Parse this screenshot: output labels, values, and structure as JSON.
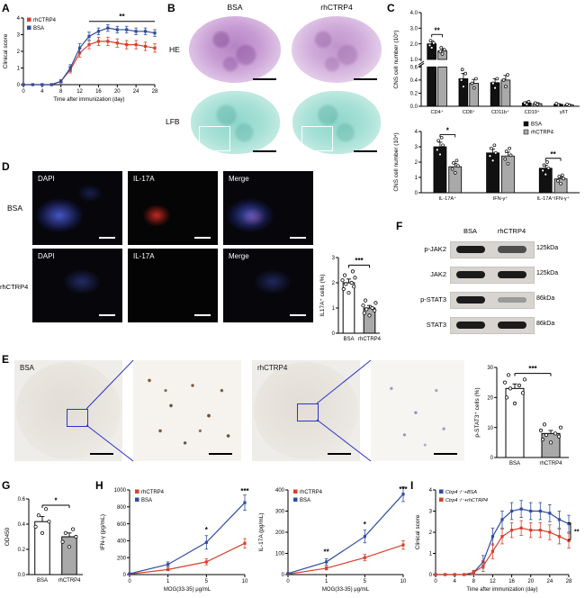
{
  "colors": {
    "red": "#d8402a",
    "blue": "#2f4da0",
    "black": "#111111",
    "gray": "#a9a9a9"
  },
  "panels": {
    "A": {
      "letter": "A"
    },
    "B": {
      "letter": "B",
      "col_labels": [
        "BSA",
        "rhCTRP4"
      ],
      "row_labels": [
        "HE",
        "LFB"
      ]
    },
    "C": {
      "letter": "C"
    },
    "D": {
      "letter": "D",
      "row_labels": [
        "BSA",
        "rhCTRP4"
      ],
      "col_labels": [
        "DAPI",
        "IL-17A",
        "Merge"
      ]
    },
    "E": {
      "letter": "E",
      "image_labels": [
        "BSA",
        "rhCTRP4"
      ]
    },
    "F": {
      "letter": "F",
      "col_labels": [
        "BSA",
        "rhCTRP4"
      ],
      "rows": [
        {
          "name": "p-JAK2",
          "kda": "125kDa"
        },
        {
          "name": "JAK2",
          "kda": "125kDa"
        },
        {
          "name": "p-STAT3",
          "kda": "86kDa"
        },
        {
          "name": "STAT3",
          "kda": "86kDa"
        }
      ]
    },
    "G": {
      "letter": "G"
    },
    "H": {
      "letter": "H"
    },
    "I": {
      "letter": "I"
    }
  },
  "chart_data": [
    {
      "id": "A",
      "type": "line",
      "xlabel": "Time after immunization (day)",
      "ylabel": "Clinical score",
      "x": [
        0,
        2,
        4,
        6,
        8,
        10,
        12,
        14,
        16,
        18,
        20,
        22,
        24,
        26,
        28
      ],
      "xticks": [
        0,
        4,
        8,
        12,
        16,
        20,
        24,
        28
      ],
      "xlim": [
        0,
        28
      ],
      "ylim": [
        0,
        4
      ],
      "yticks": [
        0,
        1,
        2,
        3,
        4
      ],
      "ytick_labels": [
        "0",
        "1",
        "2",
        "3",
        "4"
      ],
      "series": [
        {
          "name": "rhCTRP4",
          "color": "#d8402a",
          "y": [
            0,
            0,
            0,
            0,
            0.2,
            0.9,
            1.9,
            2.4,
            2.6,
            2.6,
            2.5,
            2.4,
            2.4,
            2.3,
            2.2
          ],
          "err": [
            0,
            0,
            0,
            0,
            0.1,
            0.2,
            0.25,
            0.25,
            0.25,
            0.25,
            0.25,
            0.25,
            0.25,
            0.25,
            0.25
          ]
        },
        {
          "name": "BSA",
          "color": "#2f4da0",
          "y": [
            0,
            0,
            0,
            0,
            0.2,
            1.0,
            2.2,
            2.9,
            3.2,
            3.4,
            3.3,
            3.3,
            3.2,
            3.2,
            3.1
          ],
          "err": [
            0,
            0,
            0,
            0,
            0.1,
            0.2,
            0.25,
            0.25,
            0.2,
            0.2,
            0.2,
            0.2,
            0.2,
            0.2,
            0.2
          ]
        }
      ],
      "sig": [
        {
          "type": "hline",
          "x1": 14,
          "x2": 28,
          "y": 3.8,
          "label": "**"
        }
      ]
    },
    {
      "id": "Ctop",
      "type": "group_bar",
      "broken": true,
      "ylabel": "CNS cell number (10⁵)",
      "categories": [
        "CD4⁺",
        "CD8⁺",
        "CD11b⁺",
        "CD19⁺",
        "γδT"
      ],
      "seg_top": {
        "lim": [
          1,
          4
        ],
        "ticks": [
          1,
          2,
          3,
          4
        ],
        "labels": [
          "1.0",
          "2.0",
          "3.0",
          "4.0"
        ]
      },
      "seg_bot": {
        "lim": [
          0,
          0.6
        ],
        "ticks": [
          0,
          0.2,
          0.4,
          0.6
        ],
        "labels": [
          "0.0",
          "0.2",
          "0.4",
          "0.6"
        ]
      },
      "series": [
        {
          "name": "BSA",
          "color": "#111111",
          "values": [
            2.0,
            0.42,
            0.36,
            0.05,
            0.03
          ],
          "err": [
            0.2,
            0.08,
            0.06,
            0.02,
            0.01
          ],
          "dots": [
            [
              1.75,
              1.9,
              2.05,
              2.2
            ],
            [
              0.3,
              0.4,
              0.5,
              0.56
            ],
            [
              0.28,
              0.35,
              0.42
            ],
            [
              0.03,
              0.05,
              0.07
            ],
            [
              0.02,
              0.04
            ]
          ]
        },
        {
          "name": "rhCTRP4",
          "color": "#a9a9a9",
          "values": [
            1.55,
            0.35,
            0.4,
            0.04,
            0.02
          ],
          "err": [
            0.15,
            0.06,
            0.07,
            0.015,
            0.01
          ],
          "dots": [
            [
              1.35,
              1.5,
              1.62,
              1.75
            ],
            [
              0.28,
              0.35,
              0.42
            ],
            [
              0.3,
              0.4,
              0.48
            ],
            [
              0.03,
              0.05
            ],
            [
              0.015,
              0.03
            ]
          ]
        }
      ],
      "sig": [
        {
          "ci": 0,
          "y": 2.6,
          "label": "**"
        }
      ]
    },
    {
      "id": "Cbot",
      "type": "group_bar",
      "ylabel": "CNS cell number (10⁴)",
      "categories": [
        "IL-17A⁺",
        "IFN-γ⁺",
        "IL-17A⁺IFN-γ⁺"
      ],
      "ylim": [
        0,
        4
      ],
      "yticks": [
        0,
        1,
        2,
        3,
        4
      ],
      "ytick_labels": [
        "0",
        "1",
        "2",
        "3",
        "4"
      ],
      "legend": true,
      "series": [
        {
          "name": "BSA",
          "color": "#111111",
          "values": [
            3.0,
            2.6,
            1.6
          ],
          "err": [
            0.3,
            0.25,
            0.2
          ],
          "dots": [
            [
              2.5,
              2.8,
              3.1,
              3.4,
              3.6
            ],
            [
              2.1,
              2.4,
              2.6,
              2.9,
              3.1
            ],
            [
              1.2,
              1.45,
              1.6,
              1.8,
              2.0
            ]
          ]
        },
        {
          "name": "rhCTRP4",
          "color": "#a9a9a9",
          "values": [
            1.7,
            2.4,
            0.9
          ],
          "err": [
            0.2,
            0.25,
            0.12
          ],
          "dots": [
            [
              1.3,
              1.55,
              1.75,
              1.95,
              2.1
            ],
            [
              1.9,
              2.2,
              2.45,
              2.7,
              2.9
            ],
            [
              0.6,
              0.78,
              0.92,
              1.05,
              1.15
            ]
          ]
        }
      ],
      "sig": [
        {
          "ci": 0,
          "y": 3.8,
          "label": "*"
        },
        {
          "ci": 2,
          "y": 2.25,
          "label": "**"
        }
      ]
    },
    {
      "id": "Dbar",
      "type": "bar",
      "ylabel": "IL17A⁺ cells (%)",
      "ylim": [
        0,
        3
      ],
      "yticks": [
        0,
        1,
        2,
        3
      ],
      "ytick_labels": [
        "0",
        "1",
        "2",
        "3"
      ],
      "bars": [
        {
          "label": "BSA",
          "value": 2.0,
          "err": 0.15,
          "fill": "#ffffff",
          "dots": [
            1.6,
            1.75,
            1.85,
            1.95,
            2.0,
            2.1,
            2.2,
            2.3,
            2.45
          ]
        },
        {
          "label": "rhCTRP4",
          "value": 1.0,
          "err": 0.1,
          "fill": "#a9a9a9",
          "dots": [
            0.7,
            0.8,
            0.9,
            0.95,
            1.0,
            1.1,
            1.2,
            1.3
          ]
        }
      ],
      "sig": [
        {
          "i1": 0,
          "i2": 1,
          "y": 2.7,
          "label": "***"
        }
      ]
    },
    {
      "id": "Ebar",
      "type": "bar",
      "ylabel": "p-STAT3⁺ cells (%)",
      "ylim": [
        0,
        30
      ],
      "yticks": [
        0,
        10,
        20,
        30
      ],
      "ytick_labels": [
        "0",
        "10",
        "20",
        "30"
      ],
      "bars": [
        {
          "label": "BSA",
          "value": 23,
          "err": 1.5,
          "fill": "#ffffff",
          "dots": [
            18,
            20,
            21.5,
            23,
            24,
            25,
            26,
            27.5
          ]
        },
        {
          "label": "rhCTRP4",
          "value": 8,
          "err": 1,
          "fill": "#a9a9a9",
          "dots": [
            5,
            6,
            7,
            7.5,
            8,
            9,
            10,
            11
          ]
        }
      ],
      "sig": [
        {
          "i1": 0,
          "i2": 1,
          "y": 28,
          "label": "***"
        }
      ]
    },
    {
      "id": "G",
      "type": "bar",
      "ylabel": "OD450",
      "ylim": [
        0,
        0.6
      ],
      "yticks": [
        0,
        0.2,
        0.4,
        0.6
      ],
      "ytick_labels": [
        "0.0",
        "0.2",
        "0.4",
        "0.6"
      ],
      "bars": [
        {
          "label": "BSA",
          "value": 0.42,
          "err": 0.04,
          "fill": "#ffffff",
          "dots": [
            0.33,
            0.38,
            0.42,
            0.47,
            0.52
          ]
        },
        {
          "label": "rhCTRP4",
          "value": 0.3,
          "err": 0.03,
          "fill": "#a9a9a9",
          "dots": [
            0.22,
            0.26,
            0.3,
            0.33,
            0.36
          ]
        }
      ],
      "sig": [
        {
          "i1": 0,
          "i2": 1,
          "y": 0.55,
          "label": "*"
        }
      ]
    },
    {
      "id": "H1",
      "type": "line",
      "x_even": true,
      "xlabel": "MOG(33-35) μg/mL",
      "ylabel": "IFN-γ (pg/mL)",
      "x": [
        0,
        1,
        5,
        10
      ],
      "ylim": [
        0,
        1000
      ],
      "yticks": [
        0,
        200,
        400,
        600,
        800,
        1000
      ],
      "ytick_labels": [
        "0",
        "200",
        "400",
        "600",
        "800",
        "1000"
      ],
      "series": [
        {
          "name": "rhCTRP4",
          "color": "#d8402a",
          "y": [
            5,
            60,
            150,
            370
          ],
          "err": [
            3,
            15,
            35,
            55
          ]
        },
        {
          "name": "BSA",
          "color": "#2f4da0",
          "y": [
            10,
            120,
            380,
            850
          ],
          "err": [
            5,
            30,
            80,
            90
          ]
        }
      ],
      "sig": [
        {
          "type": "star",
          "i": 2,
          "y": 500,
          "label": "*"
        },
        {
          "type": "star",
          "i": 3,
          "y": 955,
          "label": "***"
        }
      ]
    },
    {
      "id": "H2",
      "type": "line",
      "x_even": true,
      "xlabel": "MOG(33-35) μg/mL",
      "ylabel": "IL-17A (pg/mL)",
      "x": [
        0,
        1,
        5,
        10
      ],
      "ylim": [
        0,
        400
      ],
      "yticks": [
        0,
        100,
        200,
        300,
        400
      ],
      "ytick_labels": [
        "0",
        "100",
        "200",
        "300",
        "400"
      ],
      "series": [
        {
          "name": "rhCTRP4",
          "color": "#d8402a",
          "y": [
            2,
            30,
            80,
            140
          ],
          "err": [
            2,
            8,
            15,
            20
          ]
        },
        {
          "name": "BSA",
          "color": "#2f4da0",
          "y": [
            5,
            60,
            180,
            380
          ],
          "err": [
            3,
            15,
            30,
            35
          ]
        }
      ],
      "sig": [
        {
          "type": "star",
          "i": 1,
          "y": 95,
          "label": "**"
        },
        {
          "type": "star",
          "i": 2,
          "y": 225,
          "label": "*"
        },
        {
          "type": "star",
          "i": 3,
          "y": 392,
          "label": "***"
        }
      ]
    },
    {
      "id": "I",
      "type": "line",
      "xlabel": "Time after immunization (day)",
      "ylabel": "Clinical score",
      "x": [
        0,
        2,
        4,
        6,
        8,
        10,
        12,
        14,
        16,
        18,
        20,
        22,
        24,
        26,
        28
      ],
      "xticks": [
        0,
        4,
        8,
        12,
        16,
        20,
        24,
        28
      ],
      "xlim": [
        0,
        28
      ],
      "ylim": [
        0,
        4
      ],
      "yticks": [
        0,
        1,
        2,
        3,
        4
      ],
      "ytick_labels": [
        "0",
        "1",
        "2",
        "3",
        "4"
      ],
      "series": [
        {
          "name": "Ctrp4⁻/⁻+BSA",
          "italic": true,
          "color": "#2f4da0",
          "y": [
            0,
            0,
            0,
            0,
            0.1,
            0.6,
            1.8,
            2.6,
            3.0,
            3.1,
            3.0,
            3.0,
            2.9,
            2.6,
            2.4
          ],
          "err": [
            0,
            0,
            0,
            0,
            0.1,
            0.3,
            0.4,
            0.4,
            0.4,
            0.4,
            0.4,
            0.4,
            0.4,
            0.4,
            0.4
          ]
        },
        {
          "name": "Ctrp4⁻/⁻+rhCTRP4",
          "italic": true,
          "color": "#d8402a",
          "y": [
            0,
            0,
            0,
            0,
            0.1,
            0.4,
            1.1,
            1.8,
            2.1,
            2.2,
            2.1,
            2.1,
            2.0,
            1.8,
            1.6
          ],
          "err": [
            0,
            0,
            0,
            0,
            0.1,
            0.25,
            0.35,
            0.35,
            0.35,
            0.35,
            0.35,
            0.35,
            0.35,
            0.35,
            0.35
          ]
        }
      ],
      "sig": [
        {
          "type": "rbracket",
          "y1": 2.45,
          "y2": 1.65,
          "label": "**"
        }
      ]
    }
  ]
}
